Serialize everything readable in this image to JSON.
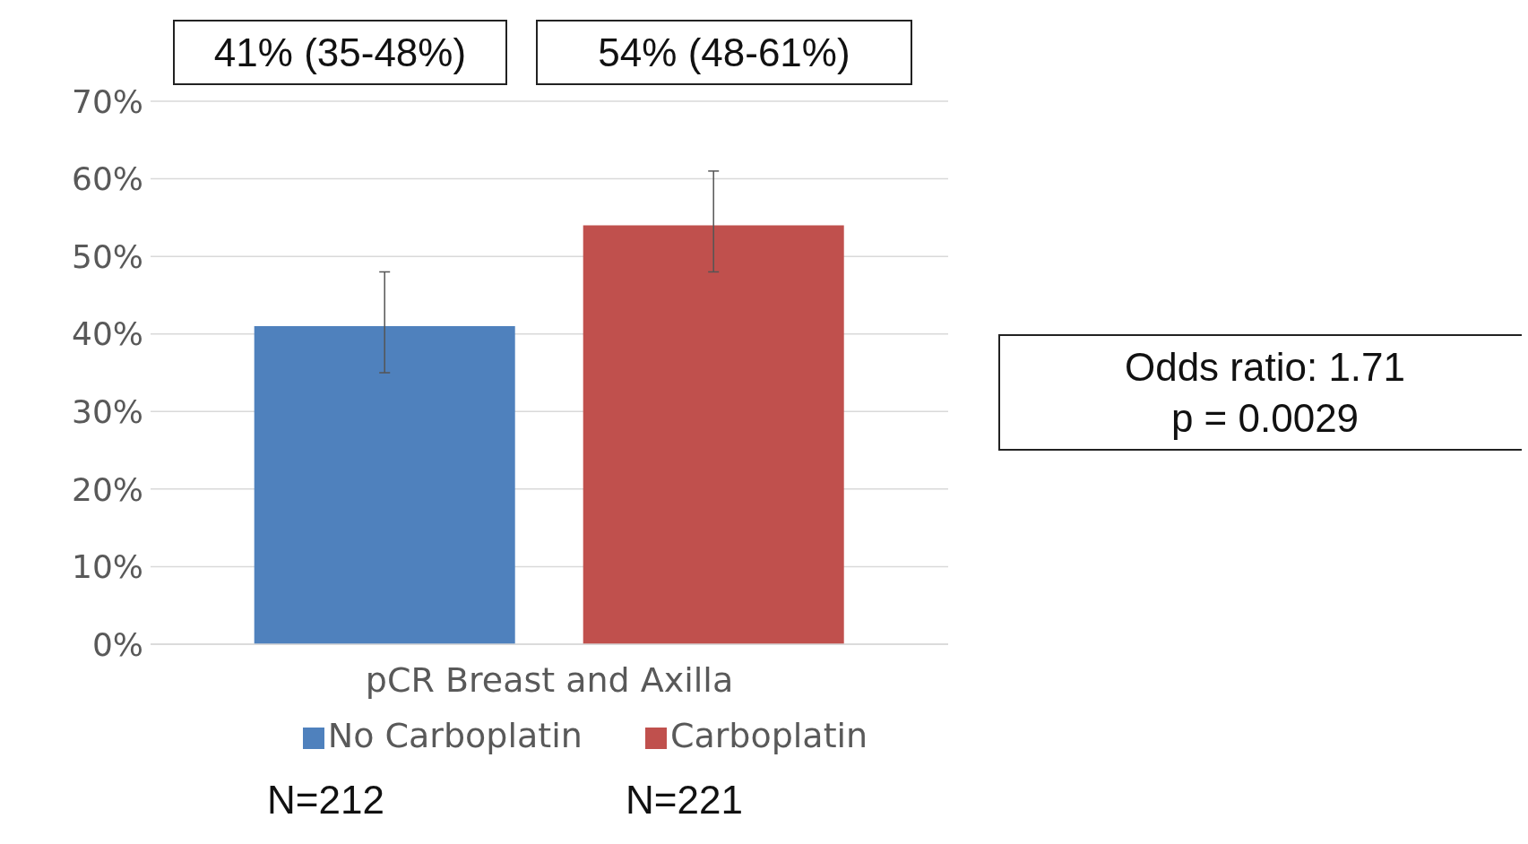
{
  "chart_data": {
    "type": "bar",
    "categories": [
      "pCR Breast and Axilla"
    ],
    "series": [
      {
        "name": "No Carboplatin",
        "color": "#4f81bd",
        "values": [
          41
        ],
        "errors": [
          [
            35,
            48
          ]
        ]
      },
      {
        "name": "Carboplatin",
        "color": "#c0504d",
        "values": [
          54
        ],
        "errors": [
          [
            48,
            61
          ]
        ]
      }
    ],
    "ylim": [
      0,
      70
    ],
    "yticks": [
      {
        "value": 0,
        "label": "0%"
      },
      {
        "value": 10,
        "label": "10%"
      },
      {
        "value": 20,
        "label": "20%"
      },
      {
        "value": 30,
        "label": "30%"
      },
      {
        "value": 40,
        "label": "40%"
      },
      {
        "value": 50,
        "label": "50%"
      },
      {
        "value": 60,
        "label": "60%"
      },
      {
        "value": 70,
        "label": "70%"
      }
    ],
    "grid": "y",
    "legend": "bottom",
    "annotations": [
      "41% (35-48%)",
      "54% (48-61%)",
      "Odds ratio: 1.71\np = 0.0029",
      "N=212",
      "N=221"
    ]
  }
}
